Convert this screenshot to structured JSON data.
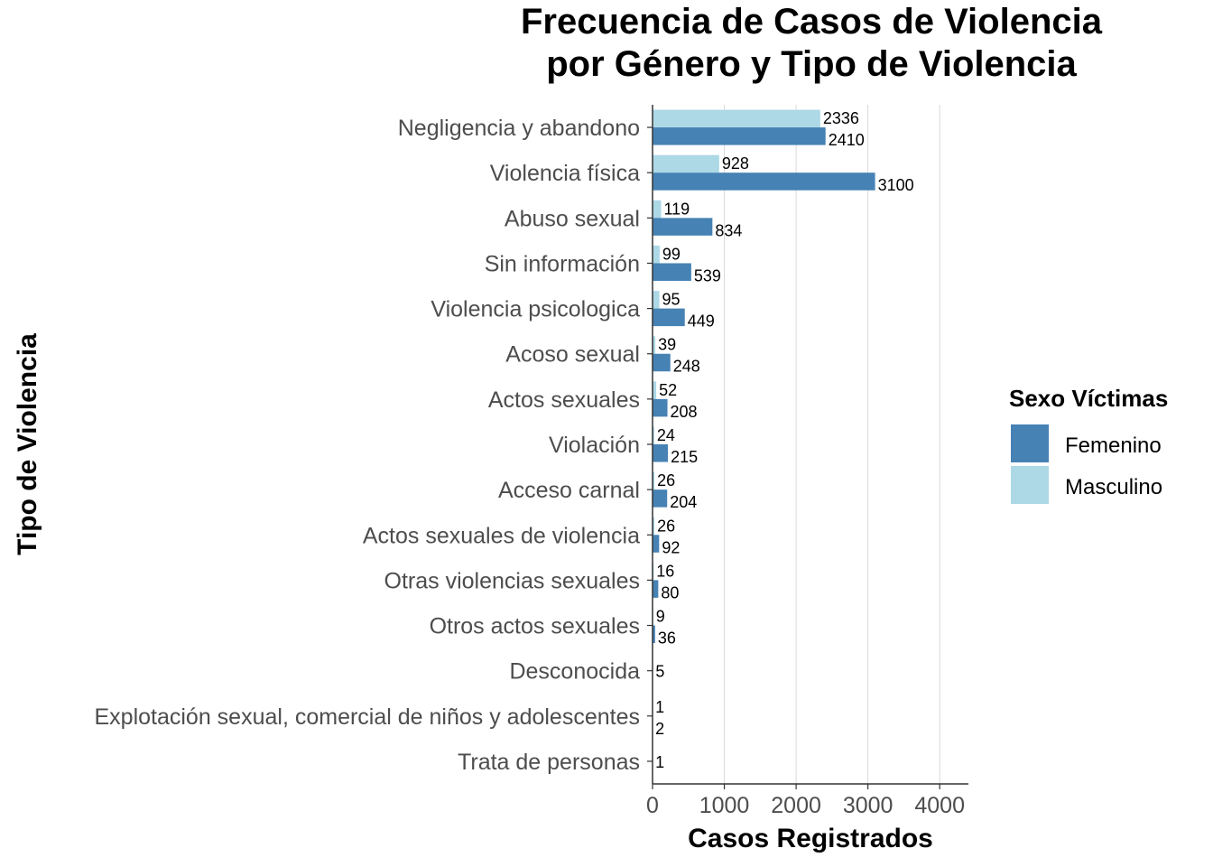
{
  "chart_data": {
    "type": "bar",
    "orientation": "horizontal",
    "title_line1": "Frecuencia de Casos de Violencia",
    "title_line2": "por Género y Tipo de Violencia",
    "xlabel": "Casos Registrados",
    "ylabel": "Tipo de Violencia",
    "xlim": [
      0,
      4400
    ],
    "xticks": [
      0,
      1000,
      2000,
      3000,
      4000
    ],
    "grid": "vertical major lines",
    "legend": {
      "title": "Sexo Víctimas",
      "position": "right",
      "entries": [
        {
          "name": "Femenino",
          "color": "#4682B4"
        },
        {
          "name": "Masculino",
          "color": "#ADD8E6"
        }
      ]
    },
    "categories": [
      "Negligencia y abandono",
      "Violencia física",
      "Abuso sexual",
      "Sin información",
      "Violencia psicologica",
      "Acoso sexual",
      "Actos sexuales",
      "Violación",
      "Acceso carnal",
      "Actos sexuales de violencia",
      "Otras violencias sexuales",
      "Otros actos sexuales",
      "Desconocida",
      "Explotación sexual, comercial de niños y adolescentes",
      "Trata de personas"
    ],
    "series": [
      {
        "name": "Femenino",
        "color": "#4682B4",
        "values": [
          2410,
          3100,
          834,
          539,
          449,
          248,
          208,
          215,
          204,
          92,
          80,
          36,
          5,
          2,
          1
        ]
      },
      {
        "name": "Masculino",
        "color": "#ADD8E6",
        "values": [
          2336,
          928,
          119,
          99,
          95,
          39,
          52,
          24,
          26,
          26,
          16,
          9,
          null,
          1,
          null
        ]
      }
    ]
  }
}
